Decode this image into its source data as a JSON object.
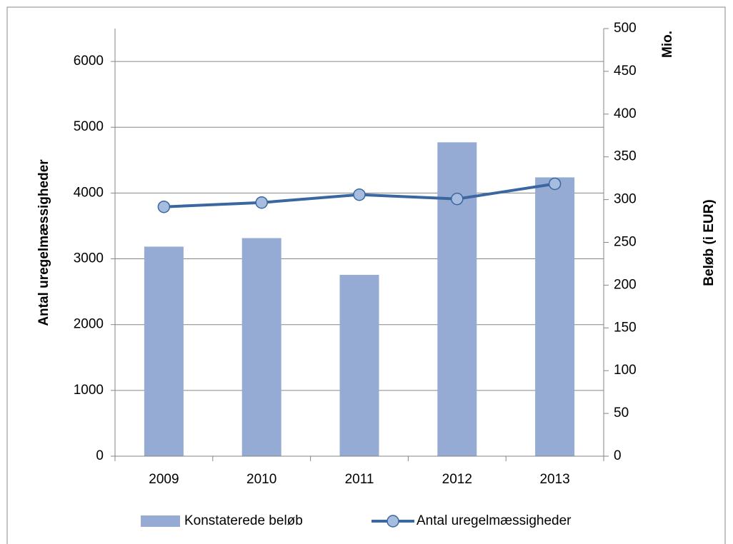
{
  "chart_data": {
    "type": "combo",
    "categories": [
      "2009",
      "2010",
      "2011",
      "2012",
      "2013"
    ],
    "series": [
      {
        "name": "Konstaterede beløb",
        "type": "bar",
        "axis": "y2",
        "color": "#95abd3",
        "values": [
          245,
          255,
          212,
          367,
          326
        ]
      },
      {
        "name": "Antal uregelmæssigheder",
        "type": "line",
        "axis": "y",
        "color": "#3a67a0",
        "marker_color": "#a6bde0",
        "values": [
          3790,
          3855,
          3975,
          3910,
          4140
        ]
      }
    ],
    "ylabel": "Antal uregelmæssigheder",
    "y2label": "Beløb (i EUR)",
    "y2unit": "Mio.",
    "ylim": [
      0,
      6500
    ],
    "yticks": [
      0,
      1000,
      2000,
      3000,
      4000,
      5000,
      6000
    ],
    "y2lim": [
      0,
      500
    ],
    "y2ticks": [
      0,
      50,
      100,
      150,
      200,
      250,
      300,
      350,
      400,
      450,
      500
    ],
    "grid": true,
    "legend": "bottom"
  }
}
